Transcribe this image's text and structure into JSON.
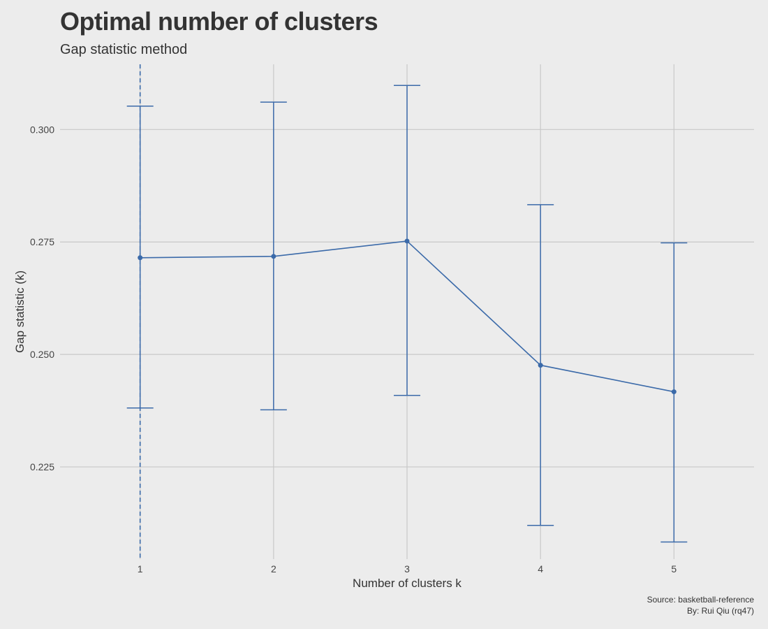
{
  "chart_data": {
    "type": "line",
    "title": "Optimal number of clusters",
    "subtitle": "Gap statistic method",
    "xlabel": "Number of clusters k",
    "ylabel": "Gap statistic (k)",
    "x": [
      1,
      2,
      3,
      4,
      5
    ],
    "x_tick_labels": [
      "1",
      "2",
      "3",
      "4",
      "5"
    ],
    "y_ticks": [
      0.225,
      0.25,
      0.275,
      0.3
    ],
    "y_tick_labels": [
      "0.225",
      "0.250",
      "0.275",
      "0.300"
    ],
    "xlim": [
      0.4,
      5.6
    ],
    "ylim": [
      0.2045,
      0.3145
    ],
    "series": [
      {
        "values": [
          0.2715,
          0.2718,
          0.2752,
          0.2476,
          0.2417
        ],
        "error_upper": [
          0.3052,
          0.3061,
          0.3098,
          0.2833,
          0.2748
        ],
        "error_lower": [
          0.2381,
          0.2377,
          0.2409,
          0.212,
          0.2083
        ]
      }
    ],
    "optimal_k": 1,
    "grid": true,
    "colors": {
      "series": "#3b6aa9",
      "grid": "#c8c8c8",
      "background": "#ececec"
    }
  },
  "caption": {
    "source": "Source: basketball-reference",
    "author": "By: Rui Qiu (rq47)"
  }
}
